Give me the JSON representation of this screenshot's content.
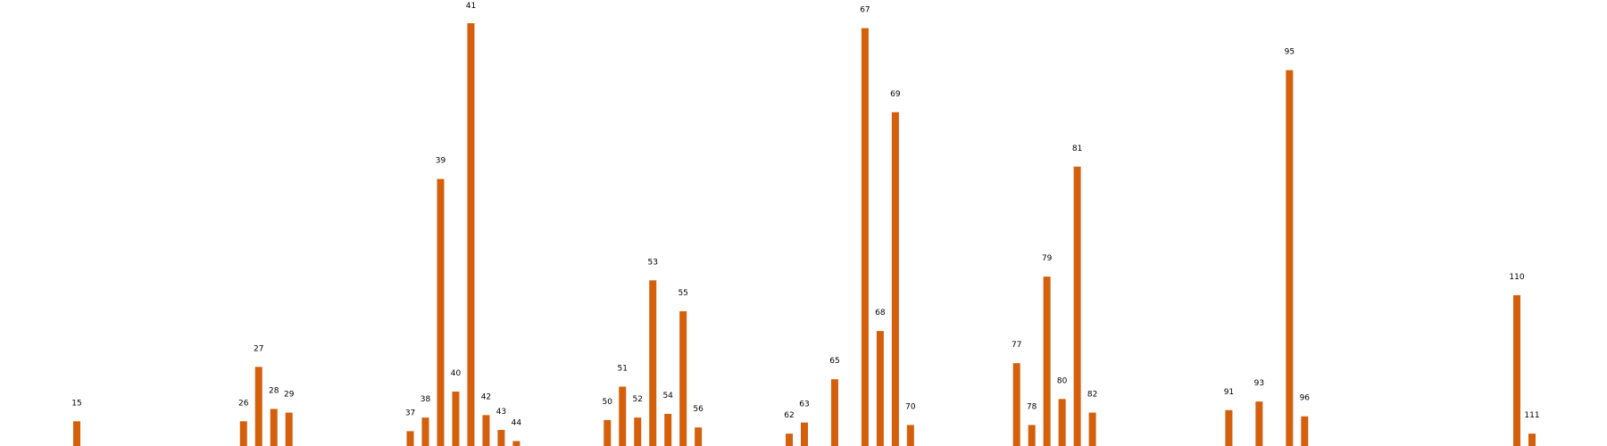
{
  "chart_data": {
    "type": "bar",
    "colors": {
      "bar": "#d4600c",
      "background": "#ffffff",
      "text": "#000000"
    },
    "bars": [
      {
        "x": 15,
        "label": "15",
        "value": 1
      },
      {
        "x": 26,
        "label": "26",
        "value": 1
      },
      {
        "x": 27,
        "label": "27",
        "value": 3.2
      },
      {
        "x": 28,
        "label": "28",
        "value": 1.5
      },
      {
        "x": 29,
        "label": "29",
        "value": 1.35
      },
      {
        "x": 37,
        "label": "37",
        "value": 0.6
      },
      {
        "x": 38,
        "label": "38",
        "value": 1.15
      },
      {
        "x": 39,
        "label": "39",
        "value": 10.8
      },
      {
        "x": 40,
        "label": "40",
        "value": 2.2
      },
      {
        "x": 41,
        "label": "41",
        "value": 17.1
      },
      {
        "x": 42,
        "label": "42",
        "value": 1.25
      },
      {
        "x": 43,
        "label": "43",
        "value": 0.65
      },
      {
        "x": 44,
        "label": "44",
        "value": 0.2
      },
      {
        "x": 50,
        "label": "50",
        "value": 1.05
      },
      {
        "x": 51,
        "label": "51",
        "value": 2.4
      },
      {
        "x": 52,
        "label": "52",
        "value": 1.15
      },
      {
        "x": 53,
        "label": "53",
        "value": 6.7
      },
      {
        "x": 54,
        "label": "54",
        "value": 1.3
      },
      {
        "x": 55,
        "label": "55",
        "value": 5.45
      },
      {
        "x": 56,
        "label": "56",
        "value": 0.75
      },
      {
        "x": 62,
        "label": "62",
        "value": 0.5
      },
      {
        "x": 63,
        "label": "63",
        "value": 0.95
      },
      {
        "x": 65,
        "label": "65",
        "value": 2.7
      },
      {
        "x": 67,
        "label": "67",
        "value": 16.9
      },
      {
        "x": 68,
        "label": "68",
        "value": 4.65
      },
      {
        "x": 69,
        "label": "69",
        "value": 13.5
      },
      {
        "x": 70,
        "label": "70",
        "value": 0.85
      },
      {
        "x": 77,
        "label": "77",
        "value": 3.35
      },
      {
        "x": 78,
        "label": "78",
        "value": 0.85
      },
      {
        "x": 79,
        "label": "79",
        "value": 6.85
      },
      {
        "x": 80,
        "label": "80",
        "value": 1.9
      },
      {
        "x": 81,
        "label": "81",
        "value": 11.3
      },
      {
        "x": 82,
        "label": "82",
        "value": 1.35
      },
      {
        "x": 91,
        "label": "91",
        "value": 1.45
      },
      {
        "x": 93,
        "label": "93",
        "value": 1.8
      },
      {
        "x": 95,
        "label": "95",
        "value": 15.2
      },
      {
        "x": 96,
        "label": "96",
        "value": 1.2
      },
      {
        "x": 110,
        "label": "110",
        "value": 6.1
      },
      {
        "x": 111,
        "label": "111",
        "value": 0.5
      }
    ]
  }
}
